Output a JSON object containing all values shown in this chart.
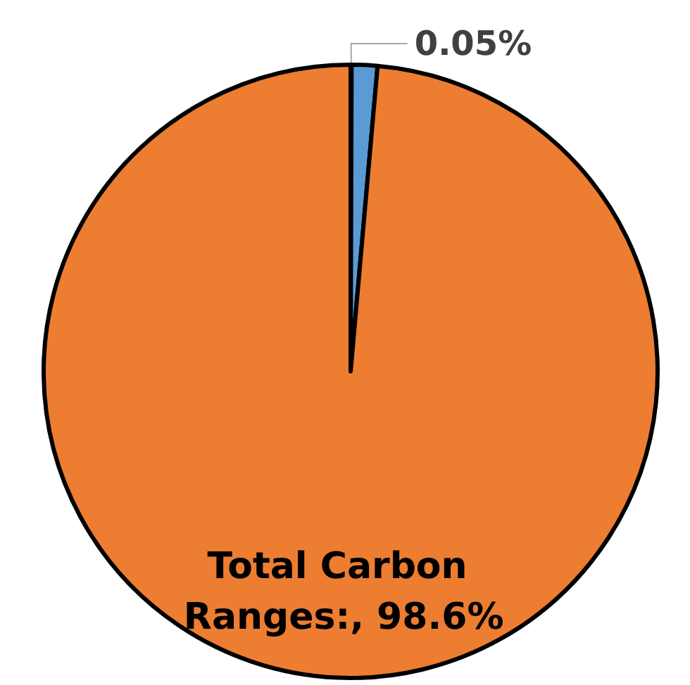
{
  "chart_data": {
    "type": "pie",
    "categories": [
      null,
      null,
      null
    ],
    "values": [
      0.05,
      1.35,
      98.6
    ],
    "colors": [
      "#a5a5a5",
      "#5b9bd5",
      "#ed7d31"
    ],
    "value_labels": [
      "0.05%",
      null,
      "Total Carbon Ranges:, 98.6%"
    ]
  }
}
